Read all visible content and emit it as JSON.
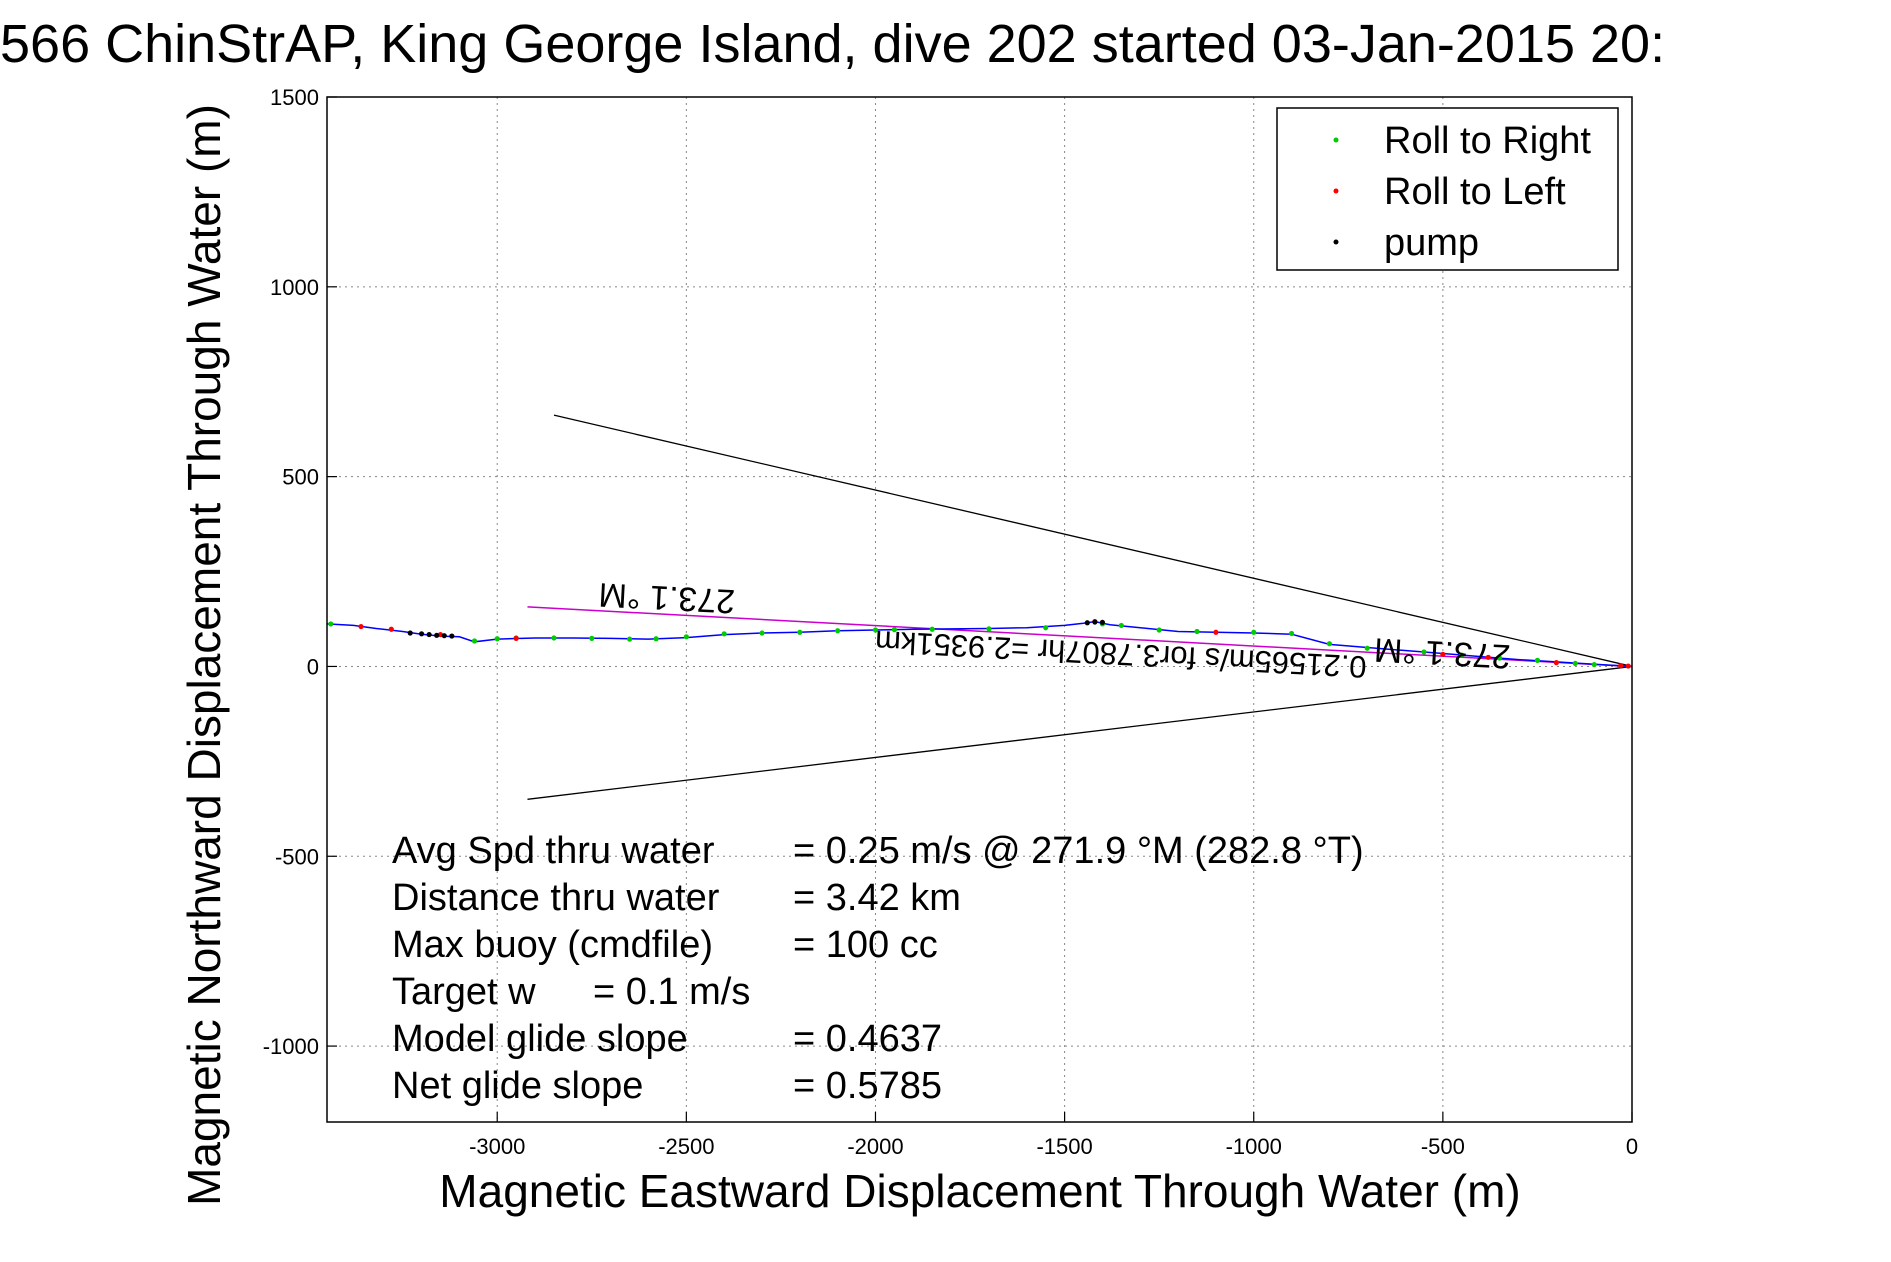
{
  "chart_data": {
    "type": "scatter",
    "title": "566 ChinStrAP, King George Island, dive 202 started 03-Jan-2015 20:",
    "xlabel": "Magnetic Eastward Displacement Through Water (m)",
    "ylabel": "Magnetic Northward Displacement Through Water (m)",
    "xlim": [
      -3450,
      0
    ],
    "ylim": [
      -1200,
      1500
    ],
    "xticks": [
      -3000,
      -2500,
      -2000,
      -1500,
      -1000,
      -500,
      0
    ],
    "yticks": [
      -1000,
      -500,
      0,
      500,
      1000,
      1500
    ],
    "xtick_labels": [
      "-3000",
      "-2500",
      "-2000",
      "-1500",
      "-1000",
      "-500",
      "0"
    ],
    "ytick_labels": [
      "-1000",
      "-500",
      "0",
      "500",
      "1000",
      "1500"
    ],
    "grid": true,
    "legend_position": "top-right",
    "legend": [
      {
        "label": "Roll to Right",
        "color": "#00cc00"
      },
      {
        "label": "Roll to Left",
        "color": "#ff0000"
      },
      {
        "label": "pump",
        "color": "#000000"
      }
    ],
    "track": {
      "color": "#0000ff",
      "x": [
        -3450,
        -3380,
        -3320,
        -3250,
        -3200,
        -3150,
        -3100,
        -3060,
        -3000,
        -2900,
        -2800,
        -2700,
        -2600,
        -2500,
        -2400,
        -2300,
        -2200,
        -2100,
        -2000,
        -1900,
        -1800,
        -1700,
        -1600,
        -1500,
        -1450,
        -1420,
        -1380,
        -1300,
        -1200,
        -1100,
        -1000,
        -900,
        -800,
        -700,
        -600,
        -500,
        -400,
        -300,
        -200,
        -100,
        0
      ],
      "y": [
        112,
        108,
        100,
        92,
        85,
        80,
        78,
        65,
        72,
        75,
        75,
        74,
        72,
        76,
        84,
        88,
        90,
        94,
        96,
        98,
        99,
        100,
        102,
        108,
        114,
        118,
        110,
        102,
        92,
        90,
        88,
        85,
        58,
        50,
        42,
        34,
        26,
        18,
        12,
        6,
        0
      ]
    },
    "roll_right_points": {
      "color": "#00cc00",
      "x": [
        -3440,
        -3060,
        -3000,
        -2950,
        -2850,
        -2750,
        -2650,
        -2580,
        -2500,
        -2400,
        -2300,
        -2200,
        -2100,
        -2000,
        -1950,
        -1850,
        -1700,
        -1550,
        -1400,
        -1350,
        -1250,
        -1150,
        -1000,
        -900,
        -800,
        -700,
        -550,
        -450,
        -350,
        -250,
        -150,
        -100
      ],
      "y": [
        112,
        67,
        73,
        75,
        75,
        74,
        72,
        73,
        78,
        86,
        88,
        90,
        94,
        96,
        97,
        98,
        99,
        102,
        112,
        108,
        96,
        92,
        90,
        87,
        60,
        48,
        38,
        30,
        22,
        16,
        8,
        5
      ]
    },
    "roll_left_points": {
      "color": "#ff0000",
      "x": [
        -3360,
        -3280,
        -3150,
        -2950,
        -1420,
        -1100,
        -500,
        -380,
        -200,
        -30,
        -10
      ],
      "y": [
        105,
        98,
        84,
        74,
        118,
        90,
        32,
        24,
        10,
        2,
        1
      ]
    },
    "pump_points": {
      "color": "#000000",
      "x": [
        -3230,
        -3200,
        -3180,
        -3160,
        -3140,
        -3120,
        -1440,
        -1420,
        -1400
      ],
      "y": [
        88,
        86,
        84,
        82,
        81,
        80,
        115,
        117,
        116
      ]
    },
    "cone_lines": {
      "color": "#000000",
      "segments": [
        {
          "x": [
            0,
            -2850
          ],
          "y": [
            0,
            662
          ]
        },
        {
          "x": [
            0,
            -2920
          ],
          "y": [
            0,
            -350
          ]
        }
      ]
    },
    "magenta_line": {
      "color": "#cc00cc",
      "x": [
        0,
        -2920
      ],
      "y": [
        0,
        157
      ]
    },
    "heading_labels": [
      {
        "text": "273.1 °M",
        "x": -2550,
        "y": 210,
        "angle": 183
      },
      {
        "text": "273.1 °M",
        "x": -500,
        "y": 65,
        "angle": 183
      },
      {
        "text": "0.21565m/s for3.7807hr =2.9351km",
        "x": -1350,
        "y": 60,
        "angle": 183
      }
    ],
    "stats": [
      {
        "label": "Avg Spd thru water",
        "value": "=  0.25 m/s @ 271.9 °M (282.8 °T)"
      },
      {
        "label": "Distance thru water",
        "value": "=  3.42 km"
      },
      {
        "label": "Max buoy (cmdfile)",
        "value": "= 100 cc"
      },
      {
        "label": "Target w",
        "value": "= 0.1 m/s"
      },
      {
        "label": "Model glide slope",
        "value": "= 0.4637"
      },
      {
        "label": "Net glide slope",
        "value": "= 0.5785"
      }
    ]
  }
}
